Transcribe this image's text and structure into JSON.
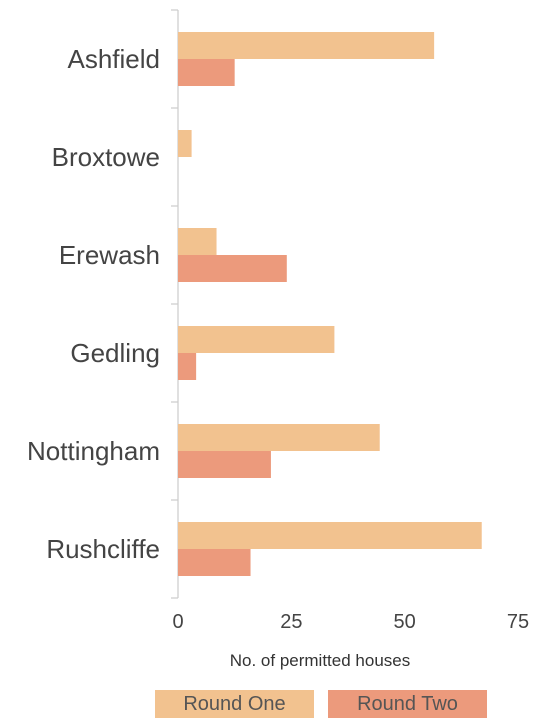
{
  "chart_data": {
    "type": "bar",
    "orientation": "horizontal",
    "categories": [
      "Ashfield",
      "Broxtowe",
      "Erewash",
      "Gedling",
      "Nottingham",
      "Rushcliffe"
    ],
    "series": [
      {
        "name": "Round One",
        "color": "#F2C28F",
        "values": [
          56.5,
          3,
          8.5,
          34.5,
          44.5,
          67
        ]
      },
      {
        "name": "Round Two",
        "color": "#EC9A7C",
        "values": [
          12.5,
          0,
          24,
          4,
          20.5,
          16
        ]
      }
    ],
    "xlabel": "No. of permitted houses",
    "xlim": [
      0,
      75
    ],
    "xticks": [
      0,
      25,
      50,
      75
    ],
    "grid": false,
    "legend_position": "bottom"
  }
}
